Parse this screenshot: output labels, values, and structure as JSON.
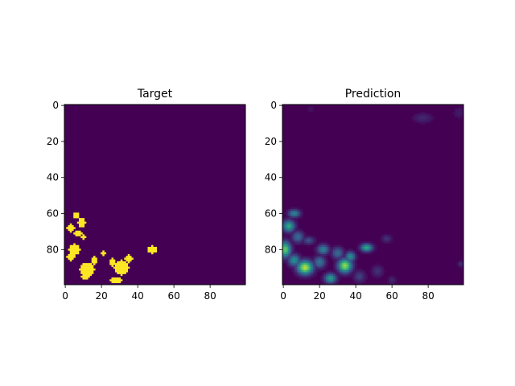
{
  "chart_data": [
    {
      "type": "heatmap",
      "title": "Target",
      "colormap": "viridis",
      "grid": false,
      "xlim": [
        0,
        99
      ],
      "ylim": [
        99,
        0
      ],
      "xticks": [
        0,
        20,
        40,
        60,
        80
      ],
      "yticks": [
        0,
        20,
        40,
        60,
        80
      ],
      "blobs": [
        {
          "cx": 6,
          "cy": 61,
          "rx": 1.5,
          "ry": 1.5,
          "v": 1
        },
        {
          "cx": 9,
          "cy": 65,
          "rx": 2,
          "ry": 2.5,
          "v": 1
        },
        {
          "cx": 3,
          "cy": 68,
          "rx": 2,
          "ry": 2,
          "v": 1
        },
        {
          "cx": 7,
          "cy": 71,
          "rx": 2,
          "ry": 1.5,
          "v": 1
        },
        {
          "cx": 10,
          "cy": 73,
          "rx": 1.5,
          "ry": 1,
          "v": 1
        },
        {
          "cx": 5,
          "cy": 80,
          "rx": 3,
          "ry": 3,
          "v": 1
        },
        {
          "cx": 3,
          "cy": 84,
          "rx": 2,
          "ry": 2,
          "v": 1
        },
        {
          "cx": 16,
          "cy": 86,
          "rx": 1.5,
          "ry": 2,
          "v": 1
        },
        {
          "cx": 21,
          "cy": 82,
          "rx": 1,
          "ry": 1,
          "v": 1
        },
        {
          "cx": 26,
          "cy": 87,
          "rx": 1.5,
          "ry": 2,
          "v": 1
        },
        {
          "cx": 12,
          "cy": 91,
          "rx": 4,
          "ry": 3.5,
          "v": 1
        },
        {
          "cx": 11,
          "cy": 95,
          "rx": 2.5,
          "ry": 1.5,
          "v": 1
        },
        {
          "cx": 31,
          "cy": 90,
          "rx": 4,
          "ry": 4,
          "v": 1
        },
        {
          "cx": 35,
          "cy": 85,
          "rx": 2,
          "ry": 2,
          "v": 1
        },
        {
          "cx": 28,
          "cy": 97,
          "rx": 3,
          "ry": 1.5,
          "v": 1
        },
        {
          "cx": 48,
          "cy": 80,
          "rx": 2.5,
          "ry": 2,
          "v": 1
        }
      ]
    },
    {
      "type": "heatmap",
      "title": "Prediction",
      "colormap": "viridis",
      "grid": false,
      "xlim": [
        0,
        99
      ],
      "ylim": [
        99,
        0
      ],
      "xticks": [
        0,
        20,
        40,
        60,
        80
      ],
      "yticks": [
        0,
        20,
        40,
        60,
        80
      ],
      "blobs": [
        {
          "cx": 77,
          "cy": 7,
          "rx": 5,
          "ry": 2.5,
          "v": 0.12
        },
        {
          "cx": 97,
          "cy": 4,
          "rx": 3,
          "ry": 3,
          "v": 0.08
        },
        {
          "cx": 15,
          "cy": 2,
          "rx": 2,
          "ry": 1.5,
          "v": 0.06
        },
        {
          "cx": 6,
          "cy": 60,
          "rx": 3,
          "ry": 2,
          "v": 0.45
        },
        {
          "cx": 3,
          "cy": 67,
          "rx": 3,
          "ry": 3,
          "v": 0.6
        },
        {
          "cx": 8,
          "cy": 73,
          "rx": 3,
          "ry": 3,
          "v": 0.35
        },
        {
          "cx": 14,
          "cy": 75,
          "rx": 3,
          "ry": 2,
          "v": 0.25
        },
        {
          "cx": 1,
          "cy": 80,
          "rx": 3,
          "ry": 4,
          "v": 0.75
        },
        {
          "cx": 6,
          "cy": 86,
          "rx": 3,
          "ry": 3,
          "v": 0.5
        },
        {
          "cx": 12,
          "cy": 90,
          "rx": 4,
          "ry": 3.5,
          "v": 0.9
        },
        {
          "cx": 20,
          "cy": 87,
          "rx": 3,
          "ry": 3,
          "v": 0.4
        },
        {
          "cx": 22,
          "cy": 80,
          "rx": 3,
          "ry": 2.5,
          "v": 0.45
        },
        {
          "cx": 30,
          "cy": 82,
          "rx": 3,
          "ry": 3,
          "v": 0.35
        },
        {
          "cx": 34,
          "cy": 89,
          "rx": 3.5,
          "ry": 3.5,
          "v": 0.85
        },
        {
          "cx": 37,
          "cy": 84,
          "rx": 2.5,
          "ry": 2.5,
          "v": 0.5
        },
        {
          "cx": 26,
          "cy": 96,
          "rx": 3,
          "ry": 2.5,
          "v": 0.55
        },
        {
          "cx": 46,
          "cy": 79,
          "rx": 3,
          "ry": 2,
          "v": 0.6
        },
        {
          "cx": 57,
          "cy": 74,
          "rx": 2.5,
          "ry": 2,
          "v": 0.15
        },
        {
          "cx": 52,
          "cy": 92,
          "rx": 3,
          "ry": 3,
          "v": 0.15
        },
        {
          "cx": 60,
          "cy": 97,
          "rx": 2,
          "ry": 2,
          "v": 0.12
        },
        {
          "cx": 42,
          "cy": 95,
          "rx": 3,
          "ry": 3,
          "v": 0.2
        },
        {
          "cx": 98,
          "cy": 88,
          "rx": 1.5,
          "ry": 1.5,
          "v": 0.15
        }
      ]
    }
  ]
}
